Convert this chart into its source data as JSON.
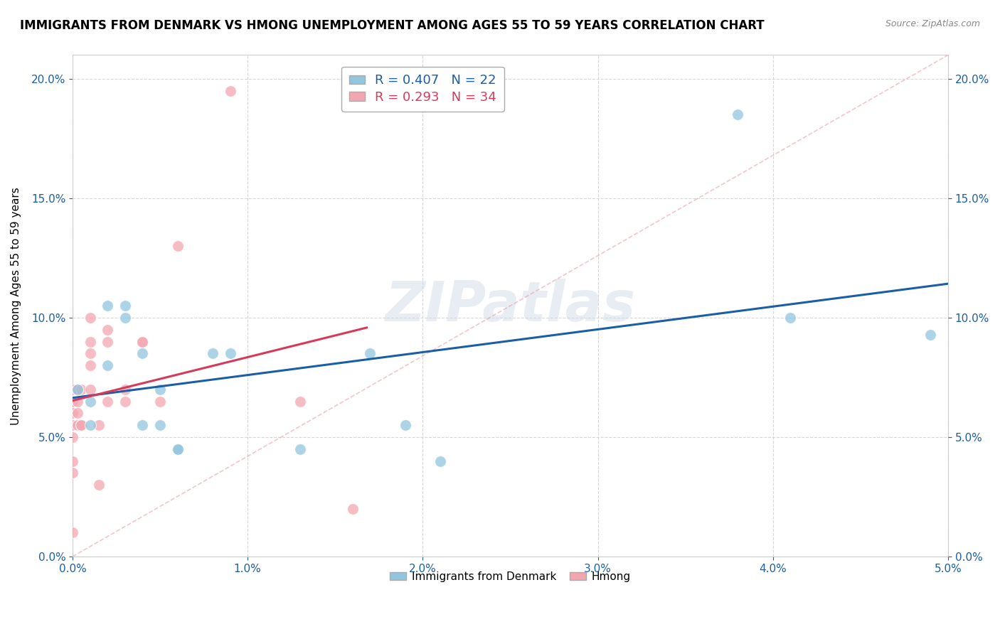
{
  "title": "IMMIGRANTS FROM DENMARK VS HMONG UNEMPLOYMENT AMONG AGES 55 TO 59 YEARS CORRELATION CHART",
  "source": "Source: ZipAtlas.com",
  "ylabel": "Unemployment Among Ages 55 to 59 years",
  "xlim": [
    0.0,
    0.05
  ],
  "ylim": [
    0.0,
    0.21
  ],
  "xticks": [
    0.0,
    0.01,
    0.02,
    0.03,
    0.04,
    0.05
  ],
  "yticks": [
    0.0,
    0.05,
    0.1,
    0.15,
    0.2
  ],
  "legend1_label": "R = 0.407   N = 22",
  "legend2_label": "R = 0.293   N = 34",
  "legend_bottom_label1": "Immigrants from Denmark",
  "legend_bottom_label2": "Hmong",
  "blue_color": "#92c5de",
  "pink_color": "#f4a6b0",
  "blue_line_color": "#1a5ea8",
  "pink_line_color": "#d63a5a",
  "denmark_x": [
    0.0003,
    0.001,
    0.001,
    0.002,
    0.002,
    0.003,
    0.003,
    0.004,
    0.004,
    0.005,
    0.005,
    0.006,
    0.006,
    0.008,
    0.009,
    0.013,
    0.017,
    0.019,
    0.021,
    0.038,
    0.041,
    0.049
  ],
  "denmark_y": [
    0.07,
    0.065,
    0.055,
    0.08,
    0.105,
    0.105,
    0.1,
    0.085,
    0.055,
    0.07,
    0.055,
    0.045,
    0.045,
    0.085,
    0.085,
    0.045,
    0.085,
    0.055,
    0.04,
    0.185,
    0.1,
    0.093
  ],
  "hmong_x": [
    0.0,
    0.0,
    0.0,
    0.0,
    0.0,
    0.0,
    0.0,
    0.0,
    0.0003,
    0.0003,
    0.0003,
    0.0003,
    0.0005,
    0.0005,
    0.0005,
    0.001,
    0.001,
    0.001,
    0.001,
    0.001,
    0.0015,
    0.0015,
    0.002,
    0.002,
    0.002,
    0.003,
    0.003,
    0.004,
    0.004,
    0.005,
    0.006,
    0.009,
    0.013,
    0.016
  ],
  "hmong_y": [
    0.07,
    0.065,
    0.06,
    0.055,
    0.05,
    0.04,
    0.035,
    0.01,
    0.07,
    0.065,
    0.06,
    0.055,
    0.055,
    0.055,
    0.07,
    0.1,
    0.09,
    0.085,
    0.08,
    0.07,
    0.055,
    0.03,
    0.095,
    0.09,
    0.065,
    0.07,
    0.065,
    0.09,
    0.09,
    0.065,
    0.13,
    0.195,
    0.065,
    0.02
  ],
  "watermark": "ZIPatlas",
  "title_fontsize": 12,
  "axis_label_fontsize": 11,
  "tick_fontsize": 11
}
